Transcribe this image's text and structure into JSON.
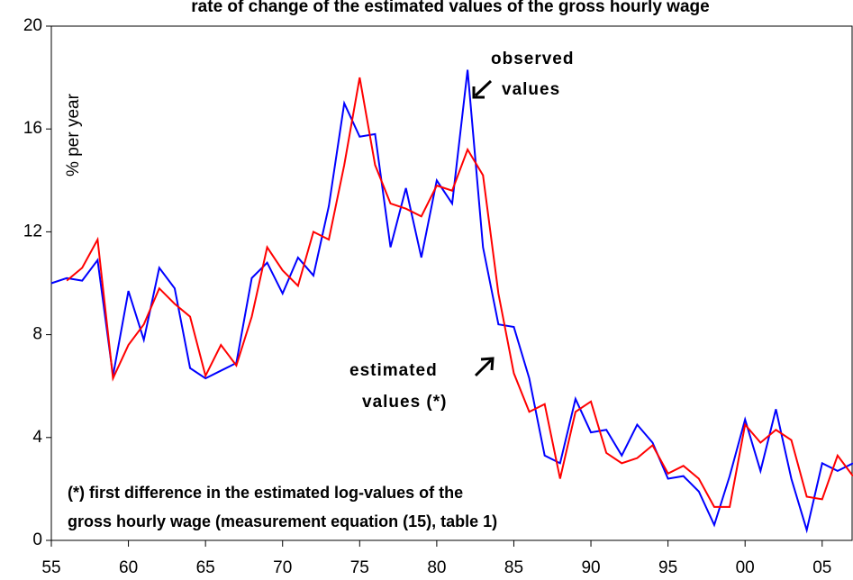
{
  "chart_data": {
    "type": "line",
    "title": "rate of change of the estimated values of the gross hourly wage",
    "y_label": "% per year",
    "annotations": [
      "observed",
      "values",
      "estimated",
      "values (*)",
      "(*) first difference in the estimated log-values of the",
      "gross hourly wage (measurement equation (15), table 1)"
    ],
    "x": [
      1955,
      1956,
      1957,
      1958,
      1959,
      1960,
      1961,
      1962,
      1963,
      1964,
      1965,
      1966,
      1967,
      1968,
      1969,
      1970,
      1971,
      1972,
      1973,
      1974,
      1975,
      1976,
      1977,
      1978,
      1979,
      1980,
      1981,
      1982,
      1983,
      1984,
      1985,
      1986,
      1987,
      1988,
      1989,
      1990,
      1991,
      1992,
      1993,
      1994,
      1995,
      1996,
      1997,
      1998,
      1999,
      2000,
      2001,
      2002,
      2003,
      2004,
      2005,
      2006,
      2007
    ],
    "series": [
      {
        "color": "#0000ff",
        "values": [
          10.0,
          10.2,
          10.1,
          10.9,
          6.4,
          9.7,
          7.8,
          10.6,
          9.8,
          6.7,
          6.3,
          6.6,
          6.9,
          10.2,
          10.8,
          9.6,
          11.0,
          10.3,
          13.0,
          17.0,
          15.7,
          15.8,
          11.4,
          13.7,
          11.0,
          14.0,
          13.1,
          18.3,
          11.4,
          8.4,
          8.3,
          6.3,
          3.3,
          3.0,
          5.5,
          4.2,
          4.3,
          3.3,
          4.5,
          3.8,
          2.4,
          2.5,
          1.9,
          0.6,
          2.5,
          4.7,
          2.7,
          5.1,
          2.4,
          0.4,
          3.0,
          2.7,
          3.0
        ]
      },
      {
        "color": "#ff0000",
        "values": [
          null,
          10.1,
          10.6,
          11.7,
          6.3,
          7.6,
          8.4,
          9.8,
          9.2,
          8.7,
          6.4,
          7.6,
          6.8,
          8.7,
          11.4,
          10.5,
          9.9,
          12.0,
          11.7,
          14.6,
          18.0,
          14.6,
          13.1,
          12.9,
          12.6,
          13.8,
          13.6,
          15.2,
          14.2,
          9.6,
          6.5,
          5.0,
          5.3,
          2.4,
          5.0,
          5.4,
          3.4,
          3.0,
          3.2,
          3.7,
          2.6,
          2.9,
          2.4,
          1.3,
          1.3,
          4.5,
          3.8,
          4.3,
          3.9,
          1.7,
          1.6,
          3.3,
          2.5
        ]
      }
    ],
    "xlim": [
      1955,
      2007
    ],
    "xticks": [
      {
        "value": 1955,
        "label": "55"
      },
      {
        "value": 1960,
        "label": "60"
      },
      {
        "value": 1965,
        "label": "65"
      },
      {
        "value": 1970,
        "label": "70"
      },
      {
        "value": 1975,
        "label": "75"
      },
      {
        "value": 1980,
        "label": "80"
      },
      {
        "value": 1985,
        "label": "85"
      },
      {
        "value": 1990,
        "label": "90"
      },
      {
        "value": 1995,
        "label": "95"
      },
      {
        "value": 2000,
        "label": "00"
      },
      {
        "value": 2005,
        "label": "05"
      }
    ],
    "ylim": [
      0,
      20
    ],
    "yticks": [
      0,
      4,
      8,
      12,
      16,
      20
    ]
  }
}
